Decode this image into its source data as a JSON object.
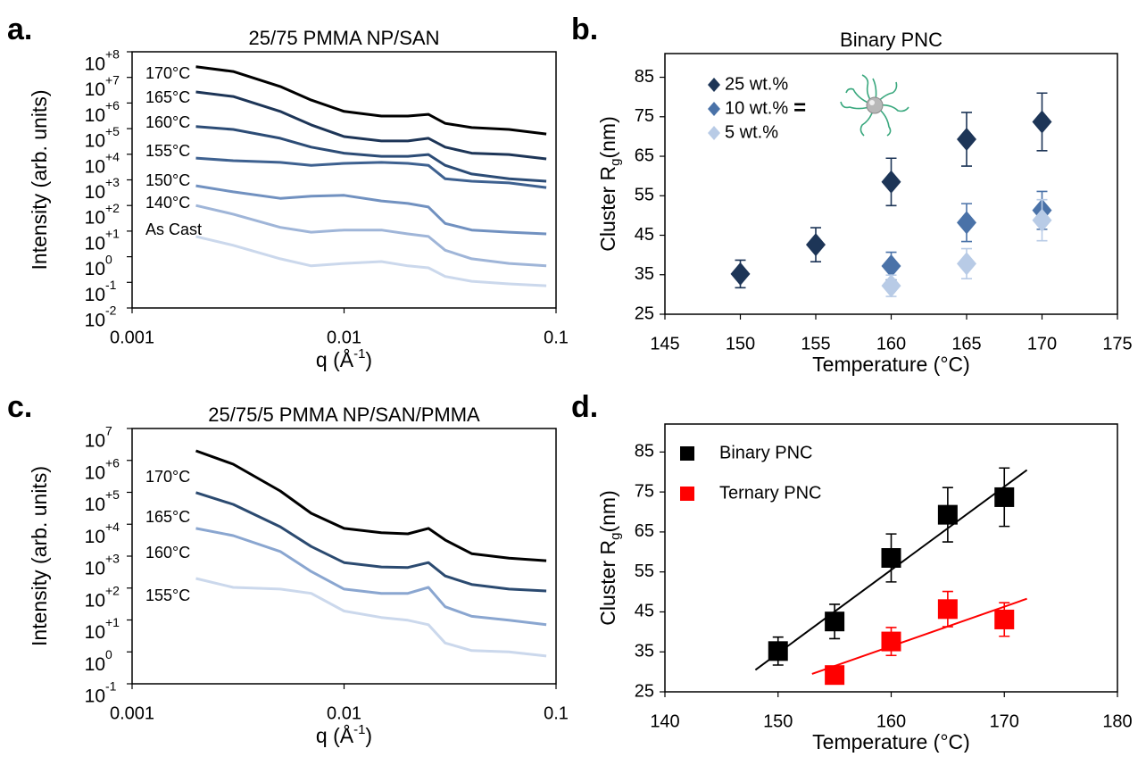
{
  "chart_data": [
    {
      "type": "line",
      "panel": "a.",
      "title": "25/75 PMMA NP/SAN",
      "xlabel": "q (Å",
      "xlabel_sup": "-1",
      "xlabel_end": ")",
      "ylabel": "Intensity (arb. units)",
      "xlog": true,
      "ylog": true,
      "xlim": [
        0.001,
        0.1
      ],
      "xticks": [
        0.001,
        0.01,
        0.1
      ],
      "ylim": [
        0.01,
        100000000
      ],
      "yticks": [
        {
          "value": 100000000,
          "label": "10",
          "power": "+8"
        },
        {
          "value": 10000000,
          "label": "10",
          "power": "+7"
        },
        {
          "value": 1000000,
          "label": "10",
          "power": "+6"
        },
        {
          "value": 100000,
          "label": "10",
          "power": "+5"
        },
        {
          "value": 10000,
          "label": "10",
          "power": "+4"
        },
        {
          "value": 1000,
          "label": "10",
          "power": "+3"
        },
        {
          "value": 100,
          "label": "10",
          "power": "+2"
        },
        {
          "value": 10,
          "label": "10",
          "power": "+1"
        },
        {
          "value": 1,
          "label": "10",
          "power": "0"
        },
        {
          "value": 0.1,
          "label": "10",
          "power": "-1"
        },
        {
          "value": 0.01,
          "label": "10",
          "power": "-2"
        }
      ],
      "x": [
        0.002,
        0.003,
        0.005,
        0.007,
        0.01,
        0.015,
        0.02,
        0.025,
        0.03,
        0.04,
        0.06,
        0.09
      ],
      "series": [
        {
          "name": "170°C",
          "color": "#000000",
          "values": [
            26000000,
            17000000,
            4400000,
            1300000,
            470000,
            310000,
            310000,
            360000,
            160000,
            110000,
            93000,
            62000
          ]
        },
        {
          "name": "165°C",
          "color": "#1d3557",
          "values": [
            2700000,
            1800000,
            470000,
            140000,
            49000,
            33000,
            33000,
            42000,
            19000,
            11000,
            9800,
            6600
          ]
        },
        {
          "name": "160°C",
          "color": "#2c4c76",
          "values": [
            120000,
            93000,
            42000,
            19000,
            11000,
            8300,
            8300,
            9800,
            3700,
            1700,
            1100,
            890
          ]
        },
        {
          "name": "155°C",
          "color": "#3e6190",
          "values": [
            7100,
            5600,
            4800,
            3700,
            4400,
            4800,
            4400,
            3700,
            1100,
            890,
            760,
            500
          ]
        },
        {
          "name": "150°C",
          "color": "#7191c0",
          "values": [
            590,
            340,
            190,
            230,
            250,
            150,
            120,
            87,
            20,
            11,
            9.1,
            7.8
          ]
        },
        {
          "name": "140°C",
          "color": "#9fb5d8",
          "values": [
            100,
            46,
            14,
            9.1,
            11,
            11,
            7.8,
            6.2,
            1.8,
            0.83,
            0.55,
            0.44
          ]
        },
        {
          "name": "As Cast",
          "color": "#cbd8ec",
          "values": [
            6.2,
            2.8,
            0.83,
            0.44,
            0.55,
            0.65,
            0.44,
            0.37,
            0.17,
            0.11,
            0.087,
            0.074
          ]
        }
      ]
    },
    {
      "type": "scatter",
      "panel": "b.",
      "title": "Binary PNC",
      "xlabel": "Temperature (°C)",
      "ylabel": "Cluster R",
      "ylabel_sub": "g",
      "ylabel_end": " (nm)",
      "xlim": [
        145,
        175
      ],
      "xticks": [
        145,
        150,
        155,
        160,
        165,
        170,
        175
      ],
      "ylim": [
        25,
        91
      ],
      "yticks": [
        25,
        35,
        45,
        55,
        65,
        75,
        85
      ],
      "marker": "diamond",
      "legend": "upper left",
      "legend_note": "=",
      "series": [
        {
          "name": "25 wt.%",
          "color": "#1d3557",
          "x": [
            150,
            155,
            160,
            165,
            170
          ],
          "values": [
            35.2,
            42.6,
            58.5,
            69.3,
            73.7
          ],
          "errors": [
            3.5,
            4.3,
            6,
            6.8,
            7.3
          ]
        },
        {
          "name": "10 wt.%",
          "color": "#4a72a8",
          "x": [
            160,
            165,
            170
          ],
          "values": [
            37.2,
            48.2,
            51.3
          ],
          "errors": [
            3.5,
            4.8,
            4.8
          ]
        },
        {
          "name": "5 wt.%",
          "color": "#b8cbe6",
          "x": [
            160,
            165,
            170
          ],
          "values": [
            32.2,
            37.8,
            48.8
          ],
          "errors": [
            2.7,
            3.8,
            5.2
          ]
        }
      ]
    },
    {
      "type": "line",
      "panel": "c.",
      "title": "25/75/5 PMMA NP/SAN/PMMA",
      "xlabel": "q (Å",
      "xlabel_sup": "-1",
      "xlabel_end": ")",
      "ylabel": "Intensity (arb. units)",
      "xlog": true,
      "ylog": true,
      "xlim": [
        0.001,
        0.1
      ],
      "xticks": [
        0.001,
        0.01,
        0.1
      ],
      "ylim": [
        0.1,
        10000000
      ],
      "yticks": [
        {
          "value": 10000000,
          "label": "10",
          "power": "7"
        },
        {
          "value": 1000000,
          "label": "10",
          "power": "+6"
        },
        {
          "value": 100000,
          "label": "10",
          "power": "+5"
        },
        {
          "value": 10000,
          "label": "10",
          "power": "+4"
        },
        {
          "value": 1000,
          "label": "10",
          "power": "+3"
        },
        {
          "value": 100,
          "label": "10",
          "power": "+2"
        },
        {
          "value": 10,
          "label": "10",
          "power": "+1"
        },
        {
          "value": 1,
          "label": "10",
          "power": "0"
        },
        {
          "value": 0.1,
          "label": "10",
          "power": "-1"
        }
      ],
      "x": [
        0.002,
        0.003,
        0.005,
        0.007,
        0.01,
        0.015,
        0.02,
        0.025,
        0.03,
        0.04,
        0.06,
        0.09
      ],
      "series": [
        {
          "name": "170°C",
          "color": "#000000",
          "values": [
            2000000,
            760000,
            110000,
            22000,
            7400,
            5400,
            5000,
            7400,
            3200,
            1200,
            870,
            720
          ]
        },
        {
          "name": "165°C",
          "color": "#2b4a70",
          "values": [
            98000,
            42000,
            8300,
            2000,
            630,
            460,
            440,
            630,
            240,
            130,
            93,
            81
          ]
        },
        {
          "name": "160°C",
          "color": "#8aa6d0",
          "values": [
            7400,
            4400,
            1400,
            330,
            93,
            68,
            68,
            105,
            26,
            13,
            9.8,
            7.1
          ]
        },
        {
          "name": "155°C",
          "color": "#cbd8ec",
          "values": [
            200,
            105,
            93,
            68,
            19,
            12,
            9.8,
            7.1,
            1.9,
            1.1,
            1,
            0.74
          ]
        }
      ]
    },
    {
      "type": "scatter",
      "panel": "d.",
      "xlabel": "Temperature (°C)",
      "ylabel": "Cluster R",
      "ylabel_sub": "g",
      "ylabel_end": " (nm)",
      "xlim": [
        140,
        180
      ],
      "xticks": [
        140,
        150,
        160,
        170,
        180
      ],
      "ylim": [
        25,
        92
      ],
      "yticks": [
        25,
        35,
        45,
        55,
        65,
        75,
        85
      ],
      "marker": "square",
      "legend": "upper left",
      "series": [
        {
          "name": "Binary PNC",
          "color": "#000000",
          "x": [
            150,
            155,
            160,
            165,
            170
          ],
          "values": [
            35.2,
            42.6,
            58.5,
            69.3,
            73.7
          ],
          "errors": [
            3.5,
            4.3,
            6,
            6.8,
            7.3
          ]
        },
        {
          "name": "Ternary PNC",
          "color": "#ff0000",
          "x": [
            155,
            160,
            165,
            170
          ],
          "values": [
            29.2,
            37.6,
            45.7,
            43.1
          ],
          "errors": [
            null,
            3.5,
            4.4,
            4.2
          ]
        }
      ],
      "fits": [
        {
          "color": "#000000",
          "x": [
            148,
            172
          ],
          "values": [
            30.5,
            80.5
          ]
        },
        {
          "color": "#ff0000",
          "x": [
            153,
            172
          ],
          "values": [
            29.5,
            48.3
          ]
        }
      ]
    }
  ]
}
